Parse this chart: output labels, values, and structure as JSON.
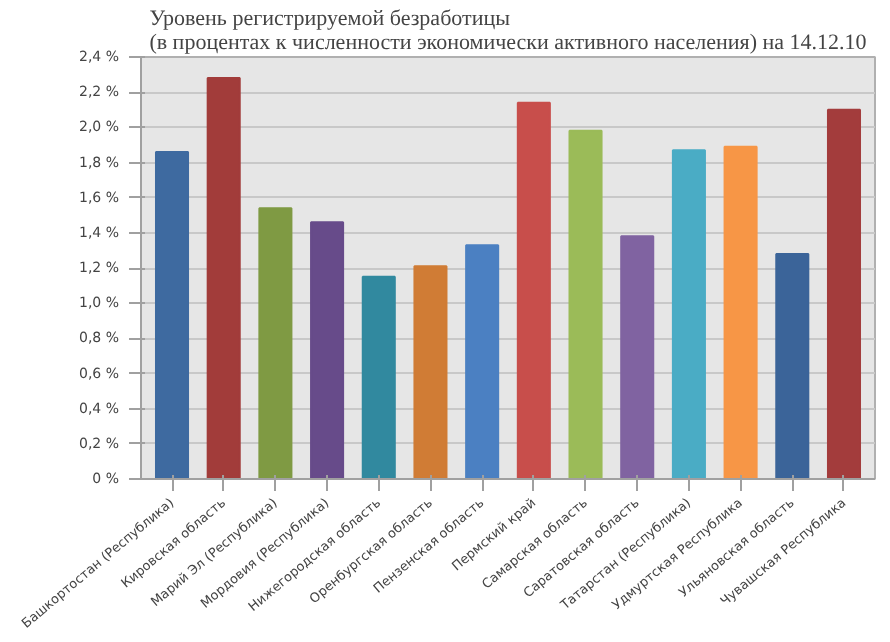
{
  "chart_data": {
    "type": "bar",
    "title": "Уровень регистрируемой безработицы\n(в процентах к численности экономически активного населения) на 14.12.10",
    "categories": [
      "Башкортостан (Республика)",
      "Кировская область",
      "Марий Эл (Республика)",
      "Мордовия (Республика)",
      "Нижегородская область",
      "Оренбургская область",
      "Пензенская область",
      "Пермский край",
      "Самарская область",
      "Саратовская область",
      "Татарстан (Республика)",
      "Удмуртская Республика",
      "Ульяновская область",
      "Чувашская Республика"
    ],
    "values": [
      1.86,
      2.28,
      1.54,
      1.46,
      1.15,
      1.21,
      1.33,
      2.14,
      1.98,
      1.38,
      1.87,
      1.89,
      1.28,
      2.1
    ],
    "colors": [
      "#3e6aa0",
      "#a23c3a",
      "#7f9a43",
      "#674b8a",
      "#31899f",
      "#d07c35",
      "#4b80c2",
      "#c84e4b",
      "#9bbb58",
      "#8063a1",
      "#4aacc5",
      "#f79646",
      "#3b6499",
      "#a33c3c"
    ],
    "ylim": [
      0,
      2.4
    ],
    "yticks": [
      {
        "value": 0,
        "label": "0 %"
      },
      {
        "value": 0.2,
        "label": "0,2 %"
      },
      {
        "value": 0.4,
        "label": "0,4 %"
      },
      {
        "value": 0.6,
        "label": "0,6 %"
      },
      {
        "value": 0.8,
        "label": "0,8 %"
      },
      {
        "value": 1.0,
        "label": "1,0 %"
      },
      {
        "value": 1.2,
        "label": "1,2 %"
      },
      {
        "value": 1.4,
        "label": "1,4 %"
      },
      {
        "value": 1.6,
        "label": "1,6 %"
      },
      {
        "value": 1.8,
        "label": "1,8 %"
      },
      {
        "value": 2.0,
        "label": "2,0 %"
      },
      {
        "value": 2.2,
        "label": "2,2 %"
      },
      {
        "value": 2.4,
        "label": "2,4 %"
      }
    ],
    "grid": "y"
  }
}
